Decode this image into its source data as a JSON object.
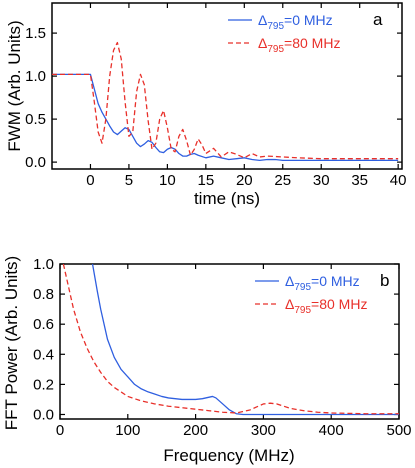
{
  "chart_data": [
    {
      "panel": "a",
      "type": "line",
      "xlabel": "time (ns)",
      "ylabel": "FWM (Arb. Units)",
      "xlim": [
        -5,
        40.5
      ],
      "ylim": [
        -0.08,
        1.85
      ],
      "xticks": [
        0,
        5,
        10,
        15,
        20,
        25,
        30,
        35,
        40
      ],
      "xtick_labels": [
        "0",
        "5",
        "10",
        "15",
        "20",
        "25",
        "30",
        "35",
        "40"
      ],
      "yticks": [
        0.0,
        0.5,
        1.0,
        1.5
      ],
      "ytick_labels": [
        "0.0",
        "0.5",
        "1.0",
        "1.5"
      ],
      "legend_position": "top-right",
      "grid": false,
      "series": [
        {
          "name_main": "Δ",
          "name_sub": "795",
          "name_rest": "=0 MHz",
          "color": "#2f5fe0",
          "dash": "solid",
          "x": [
            -5,
            0,
            0.5,
            1,
            1.5,
            2,
            2.5,
            3,
            3.5,
            4,
            4.5,
            5,
            5.5,
            6,
            6.5,
            7,
            7.5,
            8,
            8.5,
            9,
            9.5,
            10,
            10.5,
            11,
            11.5,
            12,
            12.5,
            13,
            13.5,
            14,
            15,
            16,
            17,
            18,
            19,
            20,
            21,
            22,
            23,
            24,
            25,
            27,
            30,
            35,
            40
          ],
          "y": [
            1.02,
            1.02,
            0.85,
            0.68,
            0.58,
            0.5,
            0.42,
            0.35,
            0.32,
            0.36,
            0.4,
            0.38,
            0.3,
            0.22,
            0.18,
            0.21,
            0.25,
            0.23,
            0.17,
            0.12,
            0.11,
            0.15,
            0.17,
            0.15,
            0.1,
            0.07,
            0.07,
            0.09,
            0.1,
            0.08,
            0.05,
            0.07,
            0.05,
            0.03,
            0.04,
            0.05,
            0.03,
            0.02,
            0.03,
            0.03,
            0.02,
            0.02,
            0.02,
            0.02,
            0.02
          ]
        },
        {
          "name_main": "Δ",
          "name_sub": "795",
          "name_rest": "=80 MHz",
          "color": "#e8302a",
          "dash": "dashed",
          "x": [
            -5,
            0,
            0.5,
            1,
            1.5,
            2,
            2.5,
            3,
            3.5,
            4,
            4.5,
            5,
            5.5,
            6,
            6.5,
            7,
            7.5,
            8,
            8.5,
            9,
            9.5,
            10,
            10.5,
            11,
            11.5,
            12,
            12.5,
            13,
            13.5,
            14,
            14.5,
            15,
            16,
            17,
            18,
            19,
            20,
            21,
            22,
            23,
            25,
            27,
            30,
            35,
            40
          ],
          "y": [
            1.02,
            1.02,
            0.7,
            0.35,
            0.22,
            0.5,
            1.0,
            1.3,
            1.39,
            1.2,
            0.7,
            0.3,
            0.35,
            0.82,
            1.02,
            0.9,
            0.48,
            0.15,
            0.22,
            0.5,
            0.6,
            0.4,
            0.15,
            0.12,
            0.3,
            0.38,
            0.25,
            0.08,
            0.15,
            0.27,
            0.2,
            0.1,
            0.16,
            0.06,
            0.12,
            0.09,
            0.05,
            0.1,
            0.06,
            0.07,
            0.06,
            0.05,
            0.04,
            0.04,
            0.04
          ]
        }
      ]
    },
    {
      "panel": "b",
      "type": "line",
      "xlabel": "Frequency (MHz)",
      "ylabel": "FFT Power (Arb. Units)",
      "xlim": [
        0,
        500
      ],
      "ylim": [
        -0.03,
        1.0
      ],
      "xticks": [
        0,
        100,
        200,
        300,
        400,
        500
      ],
      "xtick_labels": [
        "0",
        "100",
        "200",
        "300",
        "400",
        "500"
      ],
      "yticks": [
        0.0,
        0.2,
        0.4,
        0.6,
        0.8,
        1.0
      ],
      "ytick_labels": [
        "0.0",
        "0.2",
        "0.4",
        "0.6",
        "0.8",
        "1.0"
      ],
      "legend_position": "top-right",
      "grid": false,
      "series": [
        {
          "name_main": "Δ",
          "name_sub": "795",
          "name_rest": "=0 MHz",
          "color": "#2f5fe0",
          "dash": "solid",
          "x": [
            48,
            55,
            60,
            70,
            80,
            90,
            100,
            110,
            120,
            130,
            140,
            150,
            160,
            170,
            180,
            190,
            200,
            210,
            220,
            225,
            230,
            240,
            250,
            260,
            270,
            280,
            300,
            350,
            400,
            450,
            500
          ],
          "y": [
            1.0,
            0.82,
            0.7,
            0.5,
            0.38,
            0.3,
            0.25,
            0.2,
            0.17,
            0.15,
            0.135,
            0.12,
            0.11,
            0.105,
            0.1,
            0.1,
            0.1,
            0.105,
            0.115,
            0.12,
            0.11,
            0.07,
            0.03,
            0.005,
            0.0,
            0.0,
            0.0,
            0.0,
            0.0,
            0.0,
            0.0
          ]
        },
        {
          "name_main": "Δ",
          "name_sub": "795",
          "name_rest": "=80 MHz",
          "color": "#e8302a",
          "dash": "dashed",
          "x": [
            5,
            10,
            20,
            30,
            40,
            50,
            60,
            70,
            80,
            90,
            100,
            120,
            140,
            160,
            180,
            200,
            220,
            240,
            260,
            280,
            290,
            300,
            310,
            320,
            330,
            340,
            360,
            380,
            400,
            450,
            500
          ],
          "y": [
            1.0,
            0.9,
            0.7,
            0.55,
            0.44,
            0.35,
            0.28,
            0.22,
            0.18,
            0.15,
            0.12,
            0.09,
            0.07,
            0.055,
            0.045,
            0.035,
            0.025,
            0.015,
            0.01,
            0.03,
            0.05,
            0.07,
            0.075,
            0.07,
            0.055,
            0.04,
            0.025,
            0.015,
            0.01,
            0.005,
            0.005
          ]
        }
      ]
    }
  ]
}
